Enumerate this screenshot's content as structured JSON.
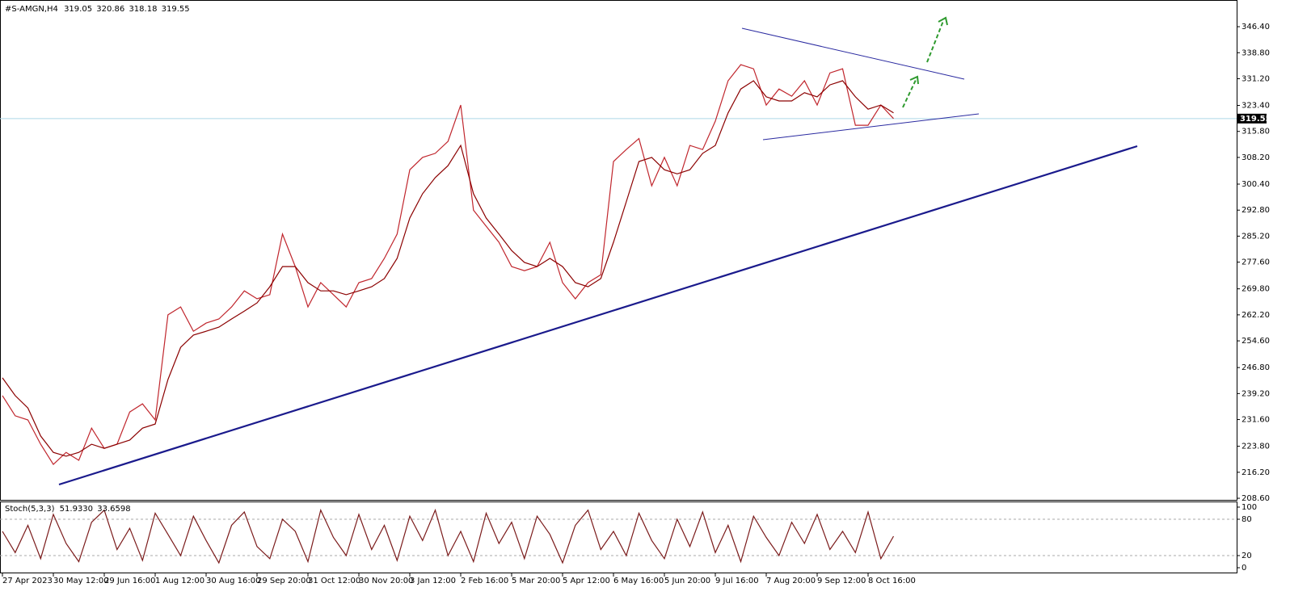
{
  "chart_data": {
    "type": "line",
    "title": "#S-AMGN,H4",
    "ohlc": [
      319.05,
      320.86,
      318.18,
      319.55
    ],
    "last_price": 319.55,
    "categories": [
      "27 Apr 2023",
      null,
      null,
      null,
      "30 May 12:00",
      null,
      null,
      null,
      "29 Jun 16:00",
      null,
      null,
      null,
      "1 Aug 12:00",
      null,
      null,
      null,
      "30 Aug 16:00",
      null,
      null,
      null,
      "29 Sep 20:00",
      null,
      null,
      null,
      "31 Oct 12:00",
      null,
      null,
      null,
      "30 Nov 20:00",
      null,
      null,
      null,
      "3 Jan 12:00",
      null,
      null,
      null,
      "2 Feb 16:00",
      null,
      null,
      null,
      "5 Mar 20:00",
      null,
      null,
      null,
      "5 Apr 12:00",
      null,
      null,
      null,
      "6 May 16:00",
      null,
      null,
      null,
      "5 Jun 20:00",
      null,
      null,
      null,
      "9 Jul 16:00",
      null,
      null,
      null,
      "7 Aug 20:00",
      null,
      null,
      null,
      "9 Sep 12:00",
      null,
      null,
      null,
      "8 Oct 16:00",
      null,
      null
    ],
    "series": [
      {
        "color": "#c0262d",
        "values": [
          238.6,
          232.7,
          231.5,
          224.4,
          218.5,
          222.0,
          219.7,
          229.1,
          223.2,
          224.4,
          233.8,
          236.2,
          231.5,
          262.2,
          264.5,
          257.4,
          259.8,
          261.0,
          264.5,
          269.2,
          266.9,
          268.1,
          285.8,
          276.3,
          264.5,
          271.6,
          268.1,
          264.5,
          271.6,
          272.8,
          278.7,
          285.8,
          304.6,
          308.2,
          309.4,
          312.9,
          323.5,
          292.8,
          288.1,
          283.4,
          276.3,
          275.1,
          276.3,
          283.4,
          271.6,
          266.9,
          271.6,
          273.9,
          307.0,
          310.5,
          313.7,
          299.9,
          308.2,
          299.9,
          311.7,
          310.5,
          318.8,
          330.6,
          335.3,
          334.1,
          323.5,
          328.2,
          326.1,
          330.6,
          323.5,
          332.9,
          334.1,
          317.6,
          317.6,
          323.5,
          319.55
        ]
      },
      {
        "color": "#8b0000",
        "values": [
          243.8,
          238.6,
          235.0,
          226.8,
          222.0,
          220.9,
          222.0,
          224.4,
          223.2,
          224.4,
          225.6,
          229.1,
          230.3,
          243.3,
          252.7,
          256.3,
          257.4,
          258.6,
          261.0,
          263.3,
          265.7,
          270.4,
          276.3,
          276.3,
          271.6,
          269.2,
          269.2,
          268.1,
          269.2,
          270.4,
          272.8,
          278.7,
          290.5,
          297.6,
          302.3,
          305.8,
          311.7,
          297.6,
          290.5,
          285.8,
          281.0,
          277.5,
          276.3,
          278.7,
          276.3,
          271.6,
          270.4,
          272.8,
          283.4,
          295.2,
          307.0,
          308.2,
          304.6,
          303.4,
          304.6,
          309.4,
          311.7,
          321.2,
          328.2,
          330.6,
          325.9,
          324.7,
          324.7,
          327.1,
          325.9,
          329.4,
          330.6,
          325.9,
          322.3,
          323.5,
          321.2
        ]
      },
      {
        "name": "Stoch(5,3,3)",
        "color": "#7b1b1b",
        "axis": "y2",
        "values": [
          60,
          25,
          70,
          15,
          88,
          40,
          10,
          75,
          95,
          30,
          65,
          12,
          90,
          55,
          20,
          85,
          45,
          8,
          70,
          92,
          35,
          15,
          80,
          60,
          10,
          95,
          50,
          20,
          88,
          30,
          70,
          12,
          85,
          45,
          95,
          20,
          60,
          10,
          90,
          40,
          75,
          15,
          85,
          55,
          8,
          70,
          95,
          30,
          60,
          20,
          90,
          45,
          15,
          80,
          35,
          92,
          25,
          70,
          10,
          85,
          50,
          20,
          75,
          40,
          88,
          30,
          60,
          25,
          92,
          15,
          51.933
        ]
      }
    ],
    "stoch_readings": {
      "values": [
        51.933,
        33.6598
      ],
      "value_labels": [
        "51.9330",
        "33.6598"
      ]
    },
    "ylim": [
      207.9,
      354.2
    ],
    "yticks": [
      {
        "value": 208.6,
        "label": "208.60"
      },
      {
        "value": 216.2,
        "label": "216.20"
      },
      {
        "value": 223.8,
        "label": "223.80"
      },
      {
        "value": 231.6,
        "label": "231.60"
      },
      {
        "value": 239.2,
        "label": "239.20"
      },
      {
        "value": 246.8,
        "label": "246.80"
      },
      {
        "value": 254.6,
        "label": "254.60"
      },
      {
        "value": 262.2,
        "label": "262.20"
      },
      {
        "value": 269.8,
        "label": "269.80"
      },
      {
        "value": 277.6,
        "label": "277.60"
      },
      {
        "value": 285.2,
        "label": "285.20"
      },
      {
        "value": 292.8,
        "label": "292.80"
      },
      {
        "value": 300.4,
        "label": "300.40"
      },
      {
        "value": 308.2,
        "label": "308.20"
      },
      {
        "value": 315.8,
        "label": "315.80"
      },
      {
        "value": 323.4,
        "label": "323.40"
      },
      {
        "value": 331.2,
        "label": "331.20"
      },
      {
        "value": 338.8,
        "label": "338.80"
      },
      {
        "value": 346.4,
        "label": "346.40"
      }
    ],
    "y2lim": [
      -9.3,
      109.3
    ],
    "y2ticks": [
      0,
      20,
      80,
      100
    ],
    "y2levels": [
      20,
      80
    ]
  }
}
